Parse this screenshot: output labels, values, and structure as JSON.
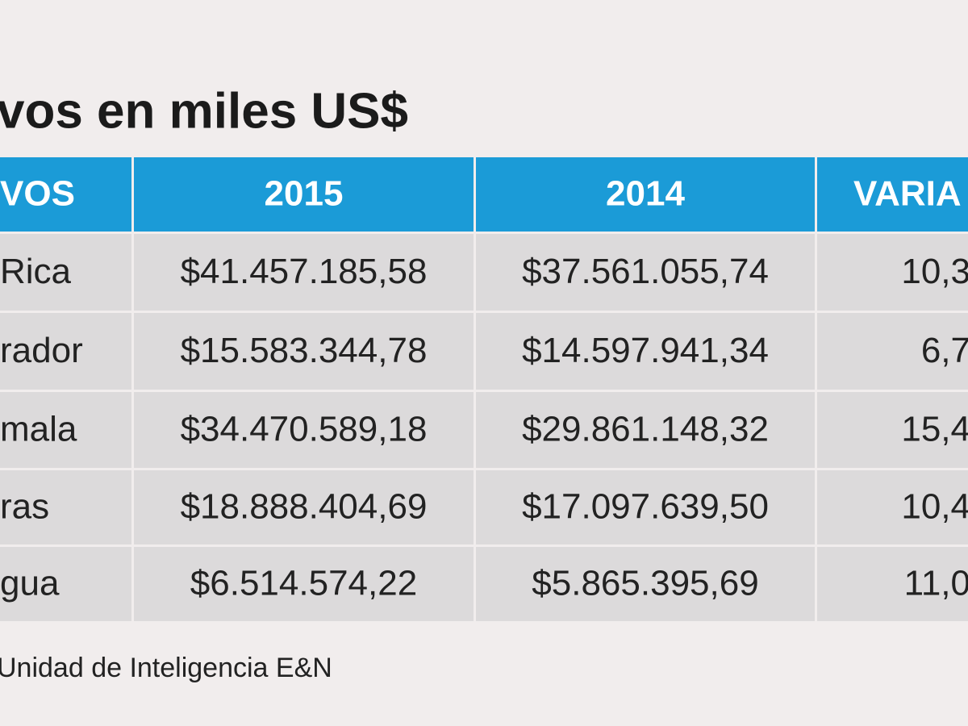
{
  "title": "vos en miles US$",
  "table": {
    "header": [
      "VOS",
      "2015",
      "2014",
      "VARIA"
    ],
    "rows": [
      [
        "Rica",
        "$41.457.185,58",
        "$37.561.055,74",
        "10,3"
      ],
      [
        "rador",
        "$15.583.344,78",
        "$14.597.941,34",
        "6,7"
      ],
      [
        "mala",
        "$34.470.589,18",
        "$29.861.148,32",
        "15,4"
      ],
      [
        "ras",
        "$18.888.404,69",
        "$17.097.639,50",
        "10,4"
      ],
      [
        "gua",
        "$6.514.574,22",
        "$5.865.395,69",
        "11,0"
      ]
    ]
  },
  "source": "Unidad de Inteligencia E&N"
}
